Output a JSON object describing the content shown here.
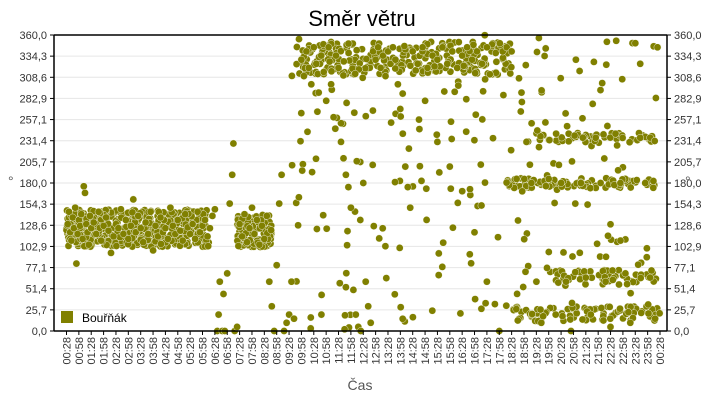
{
  "chart_data": {
    "type": "scatter",
    "title": "Směr větru",
    "xlabel": "Čas",
    "ylabel": "°",
    "ylim": [
      0,
      360
    ],
    "grid": true,
    "legend_position": "inside-bottom-left",
    "y_ticks": [
      "0,0",
      "25,7",
      "51,4",
      "77,1",
      "102,9",
      "128,6",
      "154,3",
      "180,0",
      "205,7",
      "231,4",
      "257,1",
      "282,9",
      "308,6",
      "334,3",
      "360,0"
    ],
    "x_ticks": [
      "00:28",
      "00:58",
      "01:28",
      "01:58",
      "02:28",
      "02:58",
      "03:28",
      "03:58",
      "04:28",
      "04:58",
      "05:28",
      "05:58",
      "06:28",
      "06:58",
      "07:28",
      "07:58",
      "08:28",
      "08:58",
      "09:28",
      "09:58",
      "10:28",
      "10:58",
      "11:28",
      "11:58",
      "12:28",
      "12:58",
      "13:28",
      "13:58",
      "14:28",
      "14:58",
      "15:28",
      "15:58",
      "16:28",
      "16:58",
      "17:28",
      "17:58",
      "18:28",
      "18:58",
      "19:28",
      "19:58",
      "20:28",
      "20:58",
      "21:28",
      "21:58",
      "22:28",
      "22:58",
      "23:28",
      "23:58",
      "00:28"
    ],
    "series": [
      {
        "name": "Bouřňák",
        "color": "#808000",
        "description": "Wind direction samples (degrees) over 24h. 00:28–06:00 clustered ~105–150°. 06:00–09:00 mixed ~0–230° with cluster ~100–140°. 09:20–18:00 mostly clustered ~300–355° with scattered points 0–300°. 18:00–24:00 widely scattered 0–360° with bands near ~180°, ~235°, ~65° and ~0–25°.",
        "approx_points": [
          [
            0.05,
            130
          ],
          [
            0.1,
            145
          ],
          [
            0.15,
            120
          ],
          [
            0.2,
            110
          ],
          [
            0.25,
            138
          ],
          [
            0.3,
            125
          ],
          [
            0.35,
            150
          ],
          [
            0.4,
            82
          ],
          [
            0.45,
            118
          ],
          [
            0.5,
            135
          ],
          [
            0.55,
            128
          ],
          [
            0.6,
            142
          ],
          [
            0.65,
            112
          ],
          [
            0.7,
            176
          ],
          [
            0.75,
            168
          ],
          [
            0.8,
            130
          ],
          [
            0.85,
            120
          ],
          [
            0.9,
            105
          ],
          [
            0.95,
            140
          ],
          [
            1.0,
            125
          ],
          [
            1.1,
            132
          ],
          [
            1.2,
            118
          ],
          [
            1.3,
            145
          ],
          [
            1.4,
            110
          ],
          [
            1.5,
            128
          ],
          [
            1.6,
            138
          ],
          [
            1.7,
            122
          ],
          [
            1.8,
            95
          ],
          [
            1.9,
            115
          ],
          [
            2.0,
            130
          ],
          [
            2.1,
            125
          ],
          [
            2.2,
            148
          ],
          [
            2.3,
            118
          ],
          [
            2.4,
            135
          ],
          [
            2.5,
            112
          ],
          [
            2.6,
            128
          ],
          [
            2.7,
            160
          ],
          [
            2.8,
            120
          ],
          [
            2.9,
            140
          ],
          [
            3.0,
            125
          ],
          [
            3.1,
            108
          ],
          [
            3.2,
            132
          ],
          [
            3.3,
            118
          ],
          [
            3.4,
            145
          ],
          [
            3.5,
            98
          ],
          [
            3.6,
            128
          ],
          [
            3.7,
            115
          ],
          [
            3.8,
            138
          ],
          [
            3.9,
            120
          ],
          [
            4.0,
            125
          ],
          [
            4.1,
            112
          ],
          [
            4.2,
            150
          ],
          [
            4.3,
            128
          ],
          [
            4.4,
            118
          ],
          [
            4.5,
            135
          ],
          [
            4.6,
            122
          ],
          [
            4.7,
            110
          ],
          [
            4.8,
            142
          ],
          [
            4.9,
            126
          ],
          [
            5.0,
            118
          ],
          [
            5.1,
            130
          ],
          [
            5.2,
            112
          ],
          [
            5.3,
            145
          ],
          [
            5.4,
            120
          ],
          [
            5.5,
            128
          ],
          [
            5.6,
            135
          ],
          [
            5.7,
            115
          ],
          [
            5.8,
            125
          ],
          [
            5.9,
            140
          ],
          [
            6.0,
            148
          ],
          [
            6.1,
            0
          ],
          [
            6.15,
            20
          ],
          [
            6.2,
            60
          ],
          [
            6.3,
            0
          ],
          [
            6.35,
            45
          ],
          [
            6.4,
            0
          ],
          [
            6.5,
            70
          ],
          [
            6.6,
            155
          ],
          [
            6.7,
            190
          ],
          [
            6.75,
            228
          ],
          [
            6.8,
            0
          ],
          [
            6.9,
            5
          ],
          [
            7.0,
            130
          ],
          [
            7.1,
            115
          ],
          [
            7.2,
            142
          ],
          [
            7.3,
            108
          ],
          [
            7.4,
            125
          ],
          [
            7.5,
            150
          ],
          [
            7.6,
            118
          ],
          [
            7.7,
            135
          ],
          [
            7.8,
            105
          ],
          [
            7.9,
            128
          ],
          [
            8.0,
            112
          ],
          [
            8.1,
            140
          ],
          [
            8.2,
            60
          ],
          [
            8.3,
            30
          ],
          [
            8.4,
            0
          ],
          [
            8.5,
            80
          ],
          [
            8.6,
            155
          ],
          [
            8.7,
            190
          ],
          [
            8.8,
            0
          ],
          [
            8.9,
            10
          ],
          [
            9.0,
            20
          ],
          [
            9.1,
            60
          ],
          [
            9.2,
            15
          ],
          [
            9.4,
            355
          ],
          [
            9.5,
            330
          ],
          [
            9.6,
            310
          ],
          [
            9.7,
            340
          ],
          [
            9.8,
            320
          ],
          [
            9.9,
            300
          ],
          [
            10.0,
            345
          ],
          [
            10.1,
            325
          ],
          [
            10.2,
            290
          ],
          [
            10.3,
            335
          ],
          [
            10.4,
            315
          ],
          [
            10.5,
            280
          ],
          [
            10.6,
            345
          ],
          [
            10.7,
            300
          ],
          [
            10.8,
            260
          ],
          [
            10.9,
            335
          ],
          [
            11.0,
            320
          ],
          [
            11.1,
            230
          ],
          [
            11.2,
            210
          ],
          [
            11.3,
            190
          ],
          [
            11.4,
            175
          ],
          [
            11.5,
            150
          ],
          [
            11.6,
            50
          ],
          [
            11.7,
            20
          ],
          [
            11.8,
            5
          ],
          [
            11.9,
            0
          ],
          [
            12.0,
            180
          ],
          [
            12.1,
            60
          ],
          [
            12.2,
            30
          ],
          [
            12.3,
            10
          ],
          [
            12.4,
            340
          ],
          [
            12.5,
            330
          ],
          [
            12.6,
            345
          ],
          [
            12.7,
            320
          ],
          [
            12.8,
            335
          ],
          [
            12.9,
            310
          ],
          [
            13.0,
            340
          ],
          [
            13.1,
            325
          ],
          [
            13.2,
            345
          ],
          [
            13.3,
            330
          ],
          [
            13.4,
            300
          ],
          [
            13.5,
            270
          ],
          [
            13.6,
            240
          ],
          [
            13.7,
            200
          ],
          [
            13.8,
            175
          ],
          [
            13.9,
            150
          ],
          [
            14.0,
            340
          ],
          [
            14.2,
            325
          ],
          [
            14.4,
            345
          ],
          [
            14.6,
            320
          ],
          [
            14.8,
            335
          ],
          [
            15.0,
            330
          ],
          [
            15.2,
            345
          ],
          [
            15.4,
            325
          ],
          [
            15.6,
            340
          ],
          [
            15.8,
            320
          ],
          [
            16.0,
            335
          ],
          [
            16.2,
            345
          ],
          [
            16.4,
            330
          ],
          [
            16.6,
            340
          ],
          [
            16.8,
            325
          ],
          [
            17.0,
            345
          ],
          [
            14.5,
            280
          ],
          [
            15.0,
            230
          ],
          [
            15.5,
            200
          ],
          [
            16.0,
            170
          ],
          [
            16.5,
            120
          ],
          [
            17.0,
            60
          ],
          [
            17.5,
            0
          ],
          [
            17.8,
            345
          ],
          [
            18.0,
            340
          ],
          [
            18.2,
            185
          ],
          [
            18.4,
            290
          ],
          [
            18.6,
            230
          ],
          [
            18.8,
            180
          ],
          [
            19.0,
            60
          ],
          [
            19.2,
            10
          ],
          [
            19.5,
            185
          ],
          [
            19.8,
            240
          ],
          [
            20.0,
            180
          ],
          [
            20.2,
            60
          ],
          [
            20.4,
            0
          ],
          [
            20.6,
            330
          ],
          [
            20.8,
            180
          ],
          [
            21.0,
            65
          ],
          [
            21.2,
            20
          ],
          [
            21.4,
            235
          ],
          [
            21.6,
            180
          ],
          [
            21.8,
            60
          ],
          [
            22.0,
            5
          ],
          [
            22.2,
            240
          ],
          [
            22.4,
            180
          ],
          [
            22.6,
            70
          ],
          [
            22.8,
            10
          ],
          [
            23.0,
            350
          ],
          [
            23.2,
            235
          ],
          [
            23.4,
            180
          ],
          [
            23.6,
            65
          ],
          [
            23.8,
            15
          ],
          [
            23.9,
            345
          ]
        ]
      }
    ]
  },
  "legend": {
    "label": "Bouřňák",
    "color": "#808000"
  }
}
